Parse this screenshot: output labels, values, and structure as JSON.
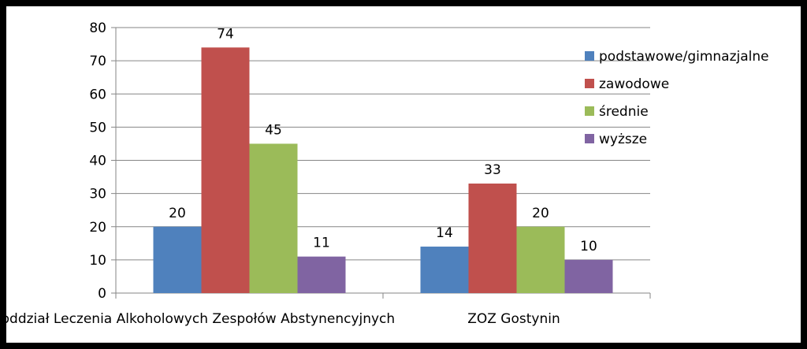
{
  "chart_data": {
    "type": "bar",
    "categories": [
      "Pododdział Leczenia Alkoholowych Zespołów Abstynencyjnych",
      "ZOZ Gostynin"
    ],
    "series": [
      {
        "name": "podstawowe/gimnazjalne",
        "values": [
          20,
          14
        ],
        "color": "#4F81BD"
      },
      {
        "name": "zawodowe",
        "values": [
          74,
          33
        ],
        "color": "#C0504D"
      },
      {
        "name": "średnie",
        "values": [
          45,
          20
        ],
        "color": "#9BBB59"
      },
      {
        "name": "wyższe",
        "values": [
          11,
          10
        ],
        "color": "#8064A2"
      }
    ],
    "ylim": [
      0,
      80
    ],
    "yticks": [
      0,
      10,
      20,
      30,
      40,
      50,
      60,
      70,
      80
    ],
    "grid": true,
    "legend": "right"
  }
}
